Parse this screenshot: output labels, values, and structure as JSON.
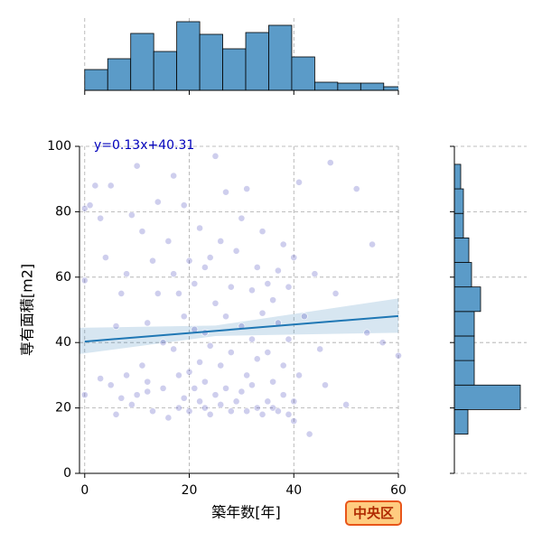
{
  "chart_data": [
    {
      "type": "scatter",
      "xlabel": "築年数[年]",
      "ylabel": "専有面積[m2]",
      "xlim": [
        -1,
        60
      ],
      "ylim": [
        0,
        100
      ],
      "xticks": [
        0,
        20,
        40,
        60
      ],
      "yticks": [
        0,
        20,
        40,
        60,
        80,
        100
      ],
      "grid": true,
      "color": "#3a3ab8",
      "x": [
        0,
        0,
        0,
        1,
        2,
        3,
        4,
        5,
        5,
        6,
        6,
        7,
        8,
        8,
        9,
        9,
        10,
        10,
        11,
        11,
        12,
        12,
        13,
        13,
        14,
        14,
        15,
        15,
        16,
        16,
        17,
        17,
        17,
        18,
        18,
        18,
        19,
        19,
        19,
        20,
        20,
        20,
        21,
        21,
        21,
        22,
        22,
        22,
        23,
        23,
        23,
        23,
        24,
        24,
        24,
        25,
        25,
        25,
        26,
        26,
        26,
        27,
        27,
        27,
        28,
        28,
        28,
        29,
        29,
        30,
        30,
        30,
        31,
        31,
        31,
        32,
        32,
        32,
        33,
        33,
        33,
        34,
        34,
        34,
        35,
        35,
        35,
        36,
        36,
        36,
        37,
        37,
        37,
        38,
        38,
        38,
        39,
        39,
        39,
        40,
        40,
        40,
        41,
        41,
        42,
        43,
        44,
        45,
        46,
        47,
        48,
        50,
        52,
        54,
        55,
        57,
        60,
        3,
        7,
        12
      ],
      "y": [
        24,
        59,
        81,
        82,
        88,
        78,
        66,
        88,
        27,
        45,
        18,
        55,
        30,
        61,
        21,
        79,
        24,
        94,
        74,
        33,
        28,
        46,
        65,
        19,
        83,
        55,
        40,
        26,
        17,
        71,
        61,
        38,
        91,
        20,
        30,
        55,
        23,
        48,
        82,
        19,
        65,
        31,
        58,
        26,
        44,
        22,
        34,
        75,
        20,
        28,
        43,
        63,
        18,
        39,
        66,
        24,
        52,
        97,
        21,
        33,
        71,
        26,
        48,
        86,
        19,
        37,
        57,
        22,
        68,
        25,
        45,
        78,
        19,
        30,
        87,
        27,
        56,
        41,
        20,
        35,
        63,
        18,
        49,
        74,
        22,
        37,
        58,
        20,
        28,
        53,
        19,
        46,
        62,
        24,
        33,
        70,
        18,
        41,
        57,
        16,
        22,
        66,
        89,
        30,
        48,
        12,
        61,
        38,
        27,
        95,
        55,
        21,
        87,
        43,
        70,
        40,
        36,
        29,
        23,
        25
      ],
      "regression": {
        "equation": "y=0.13x+40.31",
        "slope": 0.13,
        "intercept": 40.31,
        "color": "#1f77b4",
        "band_x": [
          -1,
          25,
          60
        ],
        "band_lower": [
          36.5,
          42,
          43
        ],
        "band_upper": [
          44.5,
          45.2,
          53.5
        ]
      },
      "badge": "中央区"
    },
    {
      "type": "histogram",
      "orientation": "vertical",
      "color": "#5b9bc8",
      "bins": [
        0,
        4.4,
        8.8,
        13.2,
        17.6,
        22,
        26.4,
        30.8,
        35.2,
        39.6,
        44,
        48.4,
        52.8,
        57.2,
        61.6
      ],
      "counts": [
        23,
        35,
        63,
        43,
        76,
        62,
        46,
        64,
        72,
        37,
        9,
        8,
        8,
        4
      ],
      "xlim": [
        -1,
        60
      ],
      "xticks": [
        0,
        20,
        40,
        60
      ],
      "ylim": [
        0,
        80
      ]
    },
    {
      "type": "histogram",
      "orientation": "horizontal",
      "color": "#5b9bc8",
      "bins": [
        12,
        19.5,
        27,
        34.5,
        42,
        49.5,
        57,
        64.5,
        72,
        79.5,
        87,
        94.5
      ],
      "counts": [
        15,
        73,
        22,
        22,
        22,
        29,
        19,
        16,
        10,
        10,
        7
      ],
      "ylim": [
        0,
        100
      ],
      "yticks": [
        0,
        20,
        40,
        60,
        80,
        100
      ],
      "xlim": [
        0,
        80
      ]
    }
  ]
}
